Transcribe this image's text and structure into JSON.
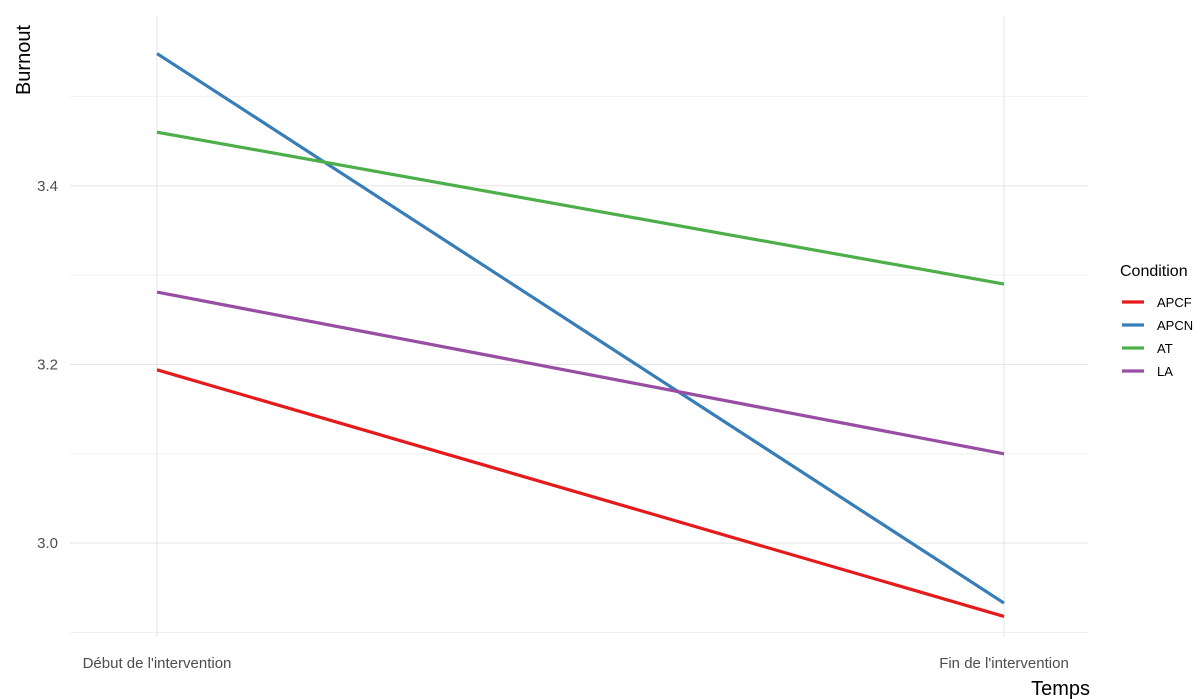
{
  "chart_data": {
    "type": "line",
    "title": "",
    "xlabel": "Temps",
    "ylabel": "Burnout",
    "categories": [
      "Début de l'intervention",
      "Fin de l'intervention"
    ],
    "ylim": [
      2.895,
      3.59
    ],
    "yticks": [
      3.0,
      3.2,
      3.4
    ],
    "ytick_labels": [
      "3.0",
      "3.2",
      "3.4"
    ],
    "grid": true,
    "legend_title": "Condition",
    "legend_position": "right",
    "series": [
      {
        "name": "APCF",
        "values": [
          3.194,
          2.918
        ],
        "color": "#e41a1c"
      },
      {
        "name": "APCN",
        "values": [
          3.548,
          2.933
        ],
        "color": "#377eb8"
      },
      {
        "name": "AT",
        "values": [
          3.46,
          3.29
        ],
        "color": "#4daf4a"
      },
      {
        "name": "LA",
        "values": [
          3.281,
          3.1
        ],
        "color": "#984ea3"
      }
    ]
  }
}
